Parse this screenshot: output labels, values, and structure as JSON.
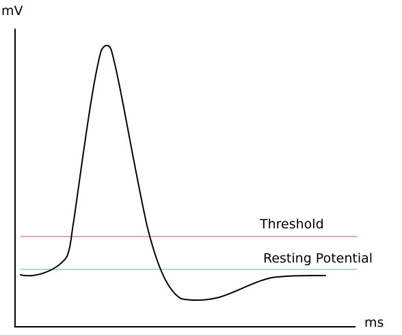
{
  "diagram": {
    "y_axis_label": "mV",
    "x_axis_label": "ms",
    "threshold_label": "Threshold",
    "resting_label": "Resting Potential",
    "colors": {
      "axis": "#000000",
      "trace": "#000000",
      "threshold_line": "#c05070",
      "resting_line": "#6aaeb0"
    }
  }
}
